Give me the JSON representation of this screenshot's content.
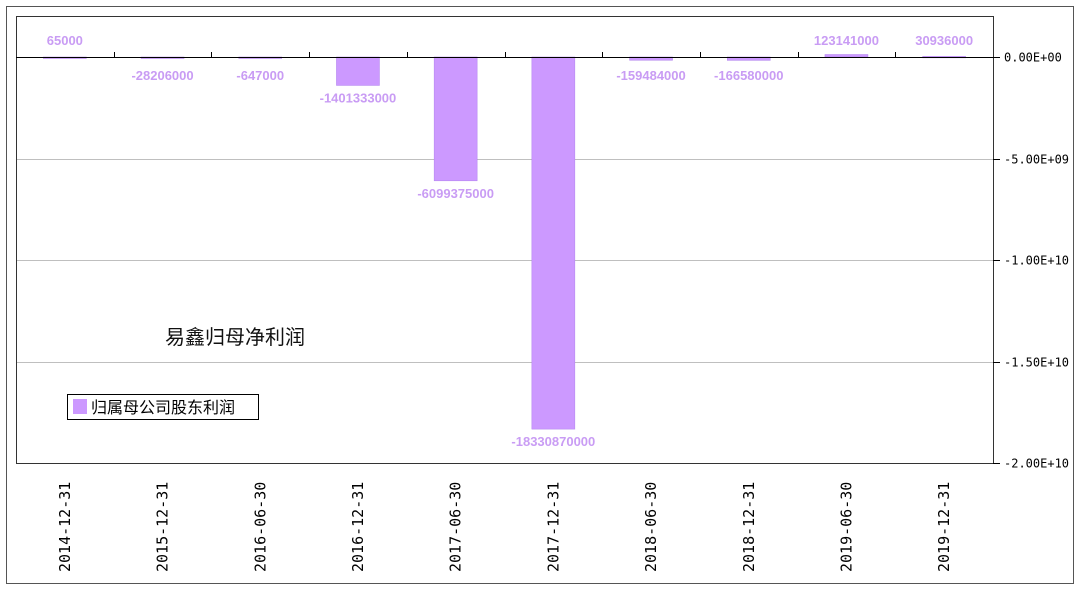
{
  "chart_data": {
    "type": "bar",
    "title": "易鑫归母净利润",
    "categories": [
      "2014-12-31",
      "2015-12-31",
      "2016-06-30",
      "2016-12-31",
      "2017-06-30",
      "2017-12-31",
      "2018-06-30",
      "2018-12-31",
      "2019-06-30",
      "2019-12-31"
    ],
    "series": [
      {
        "name": "归属母公司股东利润",
        "values": [
          65000,
          -28206000,
          -647000,
          -1401333000,
          -6099375000,
          -18330870000,
          -159484000,
          -166580000,
          123141000,
          30936000
        ],
        "labels": [
          "65000",
          "-28206000",
          "-647000",
          "-1401333000",
          "-6099375000",
          "-18330870000",
          "-159484000",
          "-166580000",
          "123141000",
          "30936000"
        ]
      }
    ],
    "yaxis": {
      "position": "right",
      "ticks": [
        0,
        -5000000000,
        -10000000000,
        -15000000000,
        -20000000000
      ],
      "tick_labels": [
        "0.00E+00",
        "-5.00E+09",
        "-1.00E+10",
        "-1.50E+10",
        "-2.00E+10"
      ]
    },
    "ylim": [
      -20000000000,
      0
    ],
    "grid": true,
    "legend": "left",
    "colors": {
      "bar": "#cc99ff",
      "label": "#c99cf4",
      "grid": "#bfbfbf"
    }
  }
}
